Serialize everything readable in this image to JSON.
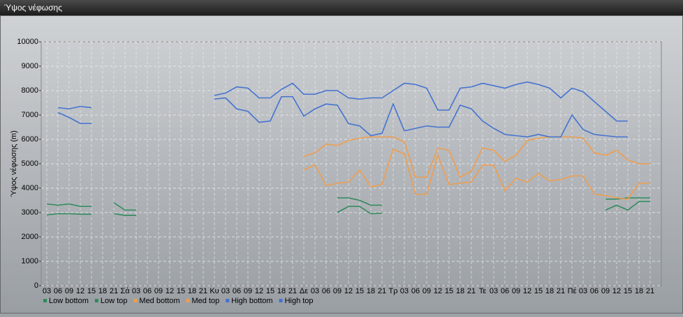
{
  "window_title": "Ύψος νέφωσης",
  "chart_data": {
    "type": "line",
    "y_label": "Ύψος νέφωσης (m)",
    "categories": [
      "03",
      "06",
      "09",
      "12",
      "15",
      "18",
      "21",
      "Σά",
      "03",
      "06",
      "09",
      "12",
      "15",
      "18",
      "21",
      "Κυ",
      "03",
      "06",
      "09",
      "12",
      "15",
      "18",
      "21",
      "Δε",
      "03",
      "06",
      "09",
      "12",
      "15",
      "18",
      "21",
      "Τρ",
      "03",
      "06",
      "09",
      "12",
      "15",
      "18",
      "21",
      "Τε",
      "03",
      "06",
      "09",
      "12",
      "15",
      "18",
      "21",
      "Πέ",
      "03",
      "06",
      "09",
      "12",
      "15",
      "18",
      "21"
    ],
    "ylim": [
      0,
      10000
    ],
    "yticks": [
      0,
      1000,
      2000,
      3000,
      4000,
      5000,
      6000,
      7000,
      8000,
      9000,
      10000
    ],
    "grid": true,
    "legend": "bottom",
    "series": [
      {
        "name": "Low bottom",
        "color": "#2f8a5c",
        "values": [
          2900,
          2950,
          2950,
          2930,
          2930,
          null,
          2950,
          2880,
          2880,
          null,
          null,
          null,
          null,
          null,
          null,
          null,
          null,
          null,
          null,
          null,
          null,
          null,
          null,
          null,
          null,
          null,
          3000,
          3250,
          3250,
          2950,
          2970,
          null,
          null,
          null,
          null,
          null,
          null,
          null,
          null,
          null,
          null,
          null,
          null,
          null,
          null,
          null,
          null,
          null,
          null,
          null,
          3100,
          3300,
          3100,
          3450,
          3450
        ]
      },
      {
        "name": "Low top",
        "color": "#2f8a5c",
        "values": [
          3350,
          3300,
          3350,
          3250,
          3250,
          null,
          3400,
          3100,
          3100,
          null,
          null,
          null,
          null,
          null,
          null,
          null,
          null,
          null,
          null,
          null,
          null,
          null,
          null,
          null,
          null,
          null,
          3600,
          3600,
          3500,
          3300,
          3300,
          null,
          null,
          null,
          null,
          null,
          null,
          null,
          null,
          null,
          null,
          null,
          null,
          null,
          null,
          null,
          null,
          null,
          null,
          null,
          3550,
          3550,
          3600,
          3600,
          3600
        ]
      },
      {
        "name": "Med bottom",
        "color": "#ef9d4e",
        "values": [
          null,
          null,
          null,
          null,
          null,
          null,
          null,
          null,
          null,
          null,
          null,
          null,
          null,
          null,
          null,
          null,
          null,
          null,
          null,
          null,
          null,
          null,
          null,
          4750,
          4950,
          4100,
          4200,
          4250,
          4750,
          4050,
          4150,
          5600,
          5400,
          3750,
          3750,
          5350,
          4150,
          4200,
          4250,
          4950,
          4950,
          3900,
          4400,
          4250,
          4600,
          4300,
          4350,
          4500,
          4500,
          3750,
          3700,
          3600,
          3550,
          4200,
          4200
        ]
      },
      {
        "name": "Med top",
        "color": "#ef9d4e",
        "values": [
          null,
          null,
          null,
          null,
          null,
          null,
          null,
          null,
          null,
          null,
          null,
          null,
          null,
          null,
          null,
          null,
          null,
          null,
          null,
          null,
          null,
          null,
          null,
          5300,
          5450,
          5800,
          5750,
          5950,
          6050,
          6100,
          6100,
          6100,
          5900,
          4450,
          4450,
          5650,
          5550,
          4450,
          4700,
          5650,
          5550,
          5100,
          5350,
          5950,
          6050,
          6100,
          6100,
          6100,
          6050,
          5450,
          5350,
          5550,
          5150,
          5000,
          5000
        ]
      },
      {
        "name": "High bottom",
        "color": "#4472d0",
        "values": [
          null,
          7100,
          6900,
          6650,
          6650,
          null,
          null,
          null,
          null,
          null,
          null,
          null,
          null,
          null,
          null,
          7650,
          7700,
          7250,
          7150,
          6700,
          6750,
          7750,
          7750,
          6950,
          7250,
          7450,
          7400,
          6650,
          6550,
          6150,
          6250,
          7450,
          6350,
          6450,
          6550,
          6500,
          6500,
          7400,
          7250,
          6750,
          6450,
          6200,
          6150,
          6100,
          6200,
          6100,
          6100,
          7000,
          6400,
          6200,
          6150,
          6100,
          6100,
          null,
          null
        ]
      },
      {
        "name": "High top",
        "color": "#4472d0",
        "values": [
          null,
          7300,
          7250,
          7350,
          7300,
          null,
          null,
          null,
          null,
          null,
          null,
          null,
          null,
          null,
          null,
          7800,
          7900,
          8150,
          8100,
          7700,
          7700,
          8050,
          8300,
          7850,
          7850,
          8000,
          8000,
          7700,
          7650,
          7700,
          7700,
          8000,
          8300,
          8250,
          8100,
          7200,
          7200,
          8100,
          8150,
          8300,
          8200,
          8100,
          8250,
          8350,
          8250,
          8100,
          7700,
          8100,
          7950,
          7550,
          7150,
          6750,
          6750,
          null,
          null
        ]
      }
    ]
  }
}
